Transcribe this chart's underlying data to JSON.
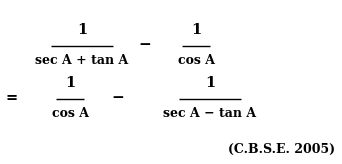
{
  "background_color": "#ffffff",
  "line1_num1": "1",
  "line1_den1": "sec A + tan A",
  "line1_minus": "−",
  "line1_num2": "1",
  "line1_den2": "cos A",
  "line2_eq": "=",
  "line2_num1": "1",
  "line2_den1": "cos A",
  "line2_minus": "−",
  "line2_num2": "1",
  "line2_den2": "sec A − tan A",
  "citation": "(C.B.S.E. 2005)",
  "fig_width": 3.42,
  "fig_height": 1.64,
  "dpi": 100
}
